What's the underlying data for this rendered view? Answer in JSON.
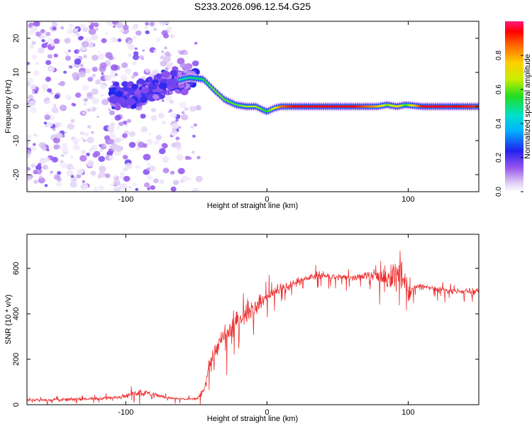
{
  "title": "S233.2026.096.12.54.G25",
  "colors": {
    "axis": "#000000",
    "snr_line": "#ee3030",
    "colormap": [
      "#ffffff",
      "#d8c4f2",
      "#8844ee",
      "#2222ee",
      "#00c8ff",
      "#22dd22",
      "#ffee00",
      "#ff8800",
      "#ff0000",
      "#ff1493"
    ]
  },
  "chart_data": [
    {
      "type": "heatmap",
      "name": "spectrogram",
      "title": "",
      "xlabel": "Height of straight line (km)",
      "ylabel": "Frequency (Hz)",
      "xlim": [
        -170,
        150
      ],
      "ylim": [
        -25,
        25
      ],
      "xticks": [
        -100,
        0,
        100
      ],
      "yticks": [
        -20,
        -10,
        0,
        10,
        20
      ],
      "colorbar": {
        "label": "Normalized spectral amplitude",
        "range": [
          0,
          1
        ],
        "ticks": [
          "0.0",
          "0.2",
          "0.4",
          "0.6",
          "0.8"
        ],
        "tick_values": [
          0,
          0.2,
          0.4,
          0.6,
          0.8
        ]
      },
      "ridge": {
        "description": "dominant frequency vs height",
        "height_km": [
          -95,
          -85,
          -75,
          -65,
          -55,
          -45,
          -38,
          -30,
          -22,
          -15,
          -8,
          0,
          5,
          10,
          20,
          40,
          60,
          78,
          85,
          92,
          98,
          110,
          130,
          150
        ],
        "freq_hz": [
          3,
          4.5,
          6,
          7.5,
          8.5,
          8,
          5,
          2,
          0.5,
          0,
          0,
          -1.5,
          -0.5,
          0,
          0,
          0,
          0,
          0,
          0.5,
          0,
          0.5,
          0,
          0,
          0
        ],
        "amplitude": [
          0.25,
          0.3,
          0.35,
          0.45,
          0.5,
          0.55,
          0.6,
          0.6,
          0.6,
          0.65,
          0.65,
          0.55,
          0.7,
          0.85,
          0.95,
          0.95,
          0.95,
          0.8,
          0.6,
          0.75,
          0.55,
          0.95,
          0.95,
          0.9
        ]
      }
    },
    {
      "type": "line",
      "name": "snr",
      "title": "",
      "xlabel": "Height of straight line (km)",
      "ylabel": "SNR (10 * v/v)",
      "xlim": [
        -170,
        150
      ],
      "ylim": [
        0,
        750
      ],
      "xticks": [
        -100,
        0,
        100
      ],
      "yticks": [
        0,
        200,
        400,
        600
      ],
      "series": [
        {
          "name": "SNR",
          "x": [
            -170,
            -150,
            -130,
            -110,
            -100,
            -90,
            -80,
            -70,
            -60,
            -50,
            -45,
            -40,
            -35,
            -30,
            -25,
            -20,
            -15,
            -10,
            -5,
            0,
            5,
            10,
            15,
            20,
            25,
            30,
            40,
            50,
            60,
            70,
            80,
            85,
            90,
            95,
            100,
            105,
            110,
            120,
            130,
            140,
            150
          ],
          "values": [
            20,
            22,
            25,
            30,
            40,
            55,
            45,
            30,
            25,
            25,
            60,
            190,
            260,
            300,
            340,
            380,
            400,
            430,
            450,
            470,
            500,
            510,
            520,
            540,
            550,
            560,
            570,
            560,
            560,
            570,
            560,
            540,
            560,
            600,
            480,
            520,
            520,
            510,
            500,
            500,
            500
          ],
          "noise": [
            12,
            14,
            15,
            18,
            25,
            40,
            30,
            18,
            12,
            15,
            60,
            90,
            110,
            110,
            110,
            100,
            100,
            90,
            80,
            70,
            60,
            50,
            50,
            45,
            40,
            40,
            35,
            35,
            40,
            50,
            80,
            110,
            170,
            150,
            90,
            45,
            40,
            35,
            35,
            35,
            35
          ]
        }
      ]
    }
  ]
}
